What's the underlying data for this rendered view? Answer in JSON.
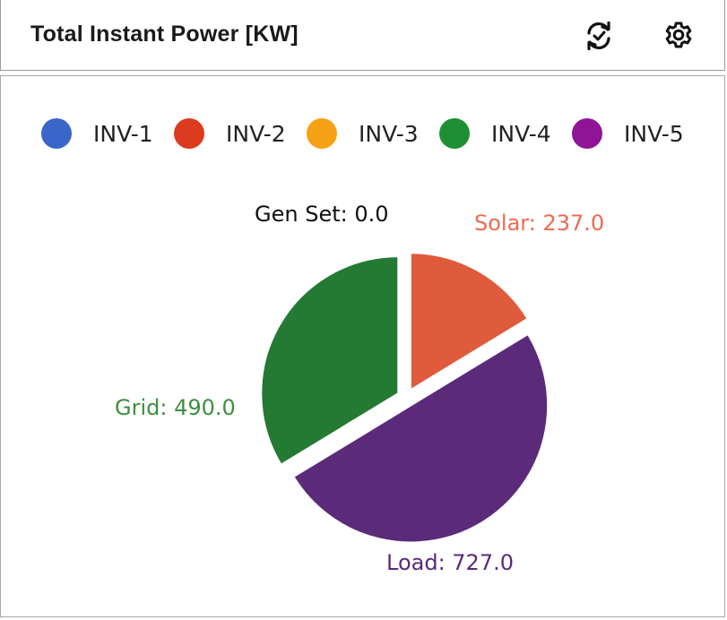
{
  "header": {
    "title": "Total Instant Power [KW]",
    "refresh_icon": "refresh-icon",
    "settings_icon": "gear-icon"
  },
  "legend": {
    "items": [
      {
        "label": "INV-1",
        "color": "#3b66c9"
      },
      {
        "label": "INV-2",
        "color": "#dc3b1f"
      },
      {
        "label": "INV-3",
        "color": "#f7a116"
      },
      {
        "label": "INV-4",
        "color": "#1f8f34"
      },
      {
        "label": "INV-5",
        "color": "#8f1596"
      }
    ]
  },
  "chart_data": {
    "type": "pie",
    "title": "",
    "slices": [
      {
        "label": "Solar",
        "value": 237.0,
        "display": "Solar: 237.0",
        "color": "#e05a3c",
        "label_color": "#ec6b52"
      },
      {
        "label": "Load",
        "value": 727.0,
        "display": "Load: 727.0",
        "color": "#5b2b79",
        "label_color": "#5b2b79"
      },
      {
        "label": "Grid",
        "value": 490.0,
        "display": "Grid: 490.0",
        "color": "#247a33",
        "label_color": "#3e8f3e"
      },
      {
        "label": "Gen Set",
        "value": 0.0,
        "display": "Gen Set: 0.0",
        "color": "#222222",
        "label_color": "#111111"
      }
    ],
    "legend_placement": "top"
  }
}
